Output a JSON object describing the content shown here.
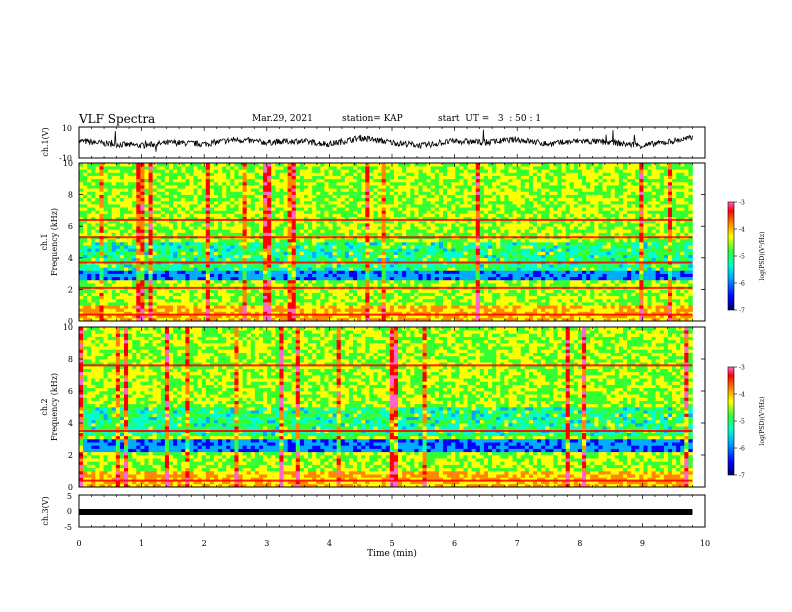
{
  "header": {
    "title": "VLF Spectra",
    "date": "Mar.29, 2021",
    "station": "station= KAP",
    "start": "start  UT =   3  : 50 : 1"
  },
  "chart_data": [
    {
      "type": "line",
      "name": "panel-ch1-voltage",
      "ylabel": "ch.1(V)",
      "ylim": [
        -10,
        10
      ],
      "y_ticks": [
        "10",
        "-10"
      ],
      "xlim": [
        0,
        10
      ],
      "description_values": "noisy voltage trace around ~0 V with spikes",
      "x": [
        0,
        0.5,
        1,
        1.5,
        2,
        2.5,
        3,
        3.5,
        4,
        4.5,
        5,
        5.5,
        6,
        6.5,
        7,
        7.5,
        8,
        8.5,
        9,
        9.5,
        9.8
      ],
      "y": [
        1,
        -1,
        -2,
        0,
        -1,
        2,
        0,
        1,
        -1,
        3,
        0,
        -2,
        1,
        0,
        2,
        -1,
        1,
        0,
        -2,
        1,
        3
      ]
    },
    {
      "type": "heatmap",
      "name": "panel-ch1-spectrogram",
      "ylabel": "ch.1\nFrequency (kHz)",
      "xlim": [
        0,
        10
      ],
      "ylim": [
        0,
        10
      ],
      "y_ticks": [
        "0",
        "2",
        "4",
        "6",
        "8",
        "10"
      ],
      "data_extent_x": [
        0,
        9.8
      ],
      "strong_lines_khz": [
        0.4,
        2.1,
        3.7,
        5.3,
        6.4
      ],
      "weak_band_khz": [
        2.6,
        3.3
      ],
      "colorbar": {
        "label": "log(PSD)(V²/Hz)",
        "ticks": [
          "-3",
          "-4",
          "-5",
          "-6",
          "-7"
        ],
        "range": [
          -7,
          -3
        ]
      }
    },
    {
      "type": "heatmap",
      "name": "panel-ch2-spectrogram",
      "ylabel": "ch.2\nFrequency (kHz)",
      "xlim": [
        0,
        10
      ],
      "ylim": [
        0,
        10
      ],
      "y_ticks": [
        "0",
        "2",
        "4",
        "6",
        "8",
        "10"
      ],
      "data_extent_x": [
        0,
        9.8
      ],
      "strong_lines_khz": [
        0.4,
        3.5,
        7.6
      ],
      "weak_band_khz": [
        2.2,
        3.1
      ],
      "colorbar": {
        "label": "log(PSD)(V²/Hz)",
        "ticks": [
          "-3",
          "-4",
          "-5",
          "-6",
          "-7"
        ],
        "range": [
          -7,
          -3
        ]
      }
    },
    {
      "type": "line",
      "name": "panel-ch3-voltage",
      "ylabel": "ch.3(V)",
      "ylim": [
        -5,
        5
      ],
      "y_ticks": [
        "5",
        "0",
        "-5"
      ],
      "xlim": [
        0,
        10
      ],
      "x": [
        0,
        9.8
      ],
      "y": [
        -0.3,
        -0.3
      ]
    }
  ],
  "xaxis": {
    "label": "Time (min)",
    "ticks": [
      "0",
      "1",
      "2",
      "3",
      "4",
      "5",
      "6",
      "7",
      "8",
      "9",
      "10"
    ]
  },
  "colors": {
    "colormap": [
      "#000066",
      "#0000ff",
      "#00aaff",
      "#00ffcc",
      "#33ff33",
      "#ffff00",
      "#ff8800",
      "#ff0000",
      "#ff66cc"
    ],
    "background": "#ffffff",
    "axis": "#000000"
  }
}
